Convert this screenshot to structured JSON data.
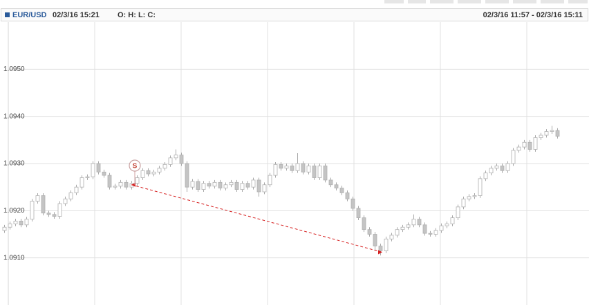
{
  "chart_data": {
    "type": "candlestick",
    "symbol": "EUR/USD",
    "timestamp": "02/3/16 15:21",
    "ohlc_label": "O: H: L: C:",
    "range": "02/3/16 11:57 - 02/3/16 15:11",
    "up_color": "#ffffff",
    "down_color": "#c4c4c4",
    "ylim": [
      1.09,
      1.096
    ],
    "yticks": [
      {
        "value": 1.091,
        "label": "1.0910"
      },
      {
        "value": 1.092,
        "label": "1.0920"
      },
      {
        "value": 1.093,
        "label": "1.0930"
      },
      {
        "value": 1.094,
        "label": "1.0940"
      },
      {
        "value": 1.095,
        "label": "1.0950"
      }
    ],
    "grid": true,
    "open": [
      1.09158,
      1.09165,
      1.09172,
      1.09178,
      1.0917,
      1.09182,
      1.0922,
      1.09232,
      1.09195,
      1.09192,
      1.09188,
      1.09215,
      1.09225,
      1.09238,
      1.0925,
      1.0927,
      1.09272,
      1.093,
      1.09282,
      1.09275,
      1.0925,
      1.09252,
      1.0926,
      1.0925,
      1.09258,
      1.0927,
      1.09285,
      1.09278,
      1.09282,
      1.0929,
      1.09298,
      1.09312,
      1.09318,
      1.093,
      1.0925,
      1.09262,
      1.09245,
      1.09258,
      1.09252,
      1.0926,
      1.09248,
      1.09255,
      1.0926,
      1.09245,
      1.09258,
      1.0925,
      1.09265,
      1.0924,
      1.09255,
      1.09275,
      1.09298,
      1.0929,
      1.09295,
      1.09285,
      1.093,
      1.09282,
      1.09295,
      1.0927,
      1.09295,
      1.09265,
      1.09255,
      1.09248,
      1.09238,
      1.09225,
      1.09205,
      1.09185,
      1.0916,
      1.0915,
      1.09125,
      1.09115,
      1.0914,
      1.09148,
      1.0916,
      1.09165,
      1.0917,
      1.09182,
      1.0917,
      1.09152,
      1.0915,
      1.09158,
      1.09168,
      1.09172,
      1.09185,
      1.09208,
      1.09225,
      1.0923,
      1.09232,
      1.09268,
      1.0928,
      1.0929,
      1.09295,
      1.09285,
      1.093,
      1.09328,
      1.09335,
      1.09345,
      1.0933,
      1.09355,
      1.0936,
      1.09368,
      1.0937
    ],
    "high": [
      1.0917,
      1.09177,
      1.09183,
      1.09183,
      1.09187,
      1.09225,
      1.09237,
      1.09237,
      1.092,
      1.09197,
      1.0922,
      1.0923,
      1.09243,
      1.09255,
      1.09275,
      1.09277,
      1.09305,
      1.09305,
      1.09287,
      1.0928,
      1.09257,
      1.09265,
      1.09265,
      1.09263,
      1.09275,
      1.0929,
      1.0929,
      1.09287,
      1.09295,
      1.09303,
      1.09317,
      1.0933,
      1.09323,
      1.09305,
      1.09267,
      1.09267,
      1.09263,
      1.09263,
      1.09265,
      1.09265,
      1.0926,
      1.09265,
      1.09265,
      1.09263,
      1.09263,
      1.0927,
      1.0927,
      1.0926,
      1.0928,
      1.09303,
      1.09303,
      1.093,
      1.093,
      1.09322,
      1.09305,
      1.093,
      1.093,
      1.093,
      1.093,
      1.0927,
      1.0926,
      1.09253,
      1.09243,
      1.0923,
      1.0921,
      1.0919,
      1.09165,
      1.09155,
      1.0913,
      1.09145,
      1.09153,
      1.09165,
      1.0917,
      1.09175,
      1.09192,
      1.09187,
      1.09175,
      1.09157,
      1.09163,
      1.09173,
      1.09177,
      1.0919,
      1.09213,
      1.0923,
      1.09235,
      1.09237,
      1.09273,
      1.09285,
      1.09295,
      1.093,
      1.093,
      1.09305,
      1.09333,
      1.0934,
      1.0935,
      1.0935,
      1.0936,
      1.09365,
      1.09373,
      1.0938,
      1.09375
    ],
    "low": [
      1.09153,
      1.0916,
      1.09167,
      1.09165,
      1.09165,
      1.09177,
      1.09215,
      1.0919,
      1.09187,
      1.09183,
      1.09183,
      1.0921,
      1.0922,
      1.09233,
      1.09245,
      1.09265,
      1.09267,
      1.09277,
      1.0927,
      1.09245,
      1.09245,
      1.09247,
      1.09245,
      1.09245,
      1.09253,
      1.09265,
      1.09273,
      1.09273,
      1.09277,
      1.09285,
      1.09293,
      1.09307,
      1.09295,
      1.0924,
      1.09245,
      1.0924,
      1.0924,
      1.09247,
      1.09247,
      1.09243,
      1.09243,
      1.0925,
      1.0924,
      1.0924,
      1.09245,
      1.09245,
      1.0923,
      1.09235,
      1.0925,
      1.0927,
      1.09285,
      1.09285,
      1.0928,
      1.0928,
      1.09277,
      1.09277,
      1.09265,
      1.09265,
      1.0926,
      1.0925,
      1.09243,
      1.09233,
      1.0922,
      1.092,
      1.0918,
      1.09155,
      1.09145,
      1.09115,
      1.09105,
      1.0911,
      1.09135,
      1.09143,
      1.09155,
      1.0916,
      1.09165,
      1.09165,
      1.09147,
      1.09145,
      1.09145,
      1.09153,
      1.09163,
      1.09167,
      1.0918,
      1.09203,
      1.0922,
      1.09225,
      1.09227,
      1.09263,
      1.09275,
      1.09285,
      1.0928,
      1.0928,
      1.09295,
      1.09323,
      1.0933,
      1.09325,
      1.09325,
      1.0935,
      1.09355,
      1.09363,
      1.09353
    ],
    "close": [
      1.09165,
      1.09172,
      1.09178,
      1.0917,
      1.09182,
      1.0922,
      1.09232,
      1.09195,
      1.09192,
      1.09188,
      1.09215,
      1.09225,
      1.09238,
      1.0925,
      1.0927,
      1.09272,
      1.093,
      1.09282,
      1.09275,
      1.0925,
      1.09252,
      1.0926,
      1.0925,
      1.09258,
      1.0927,
      1.09285,
      1.09278,
      1.09282,
      1.0929,
      1.09298,
      1.09312,
      1.09318,
      1.093,
      1.0925,
      1.09262,
      1.09245,
      1.09258,
      1.09252,
      1.0926,
      1.09248,
      1.09255,
      1.0926,
      1.09245,
      1.09258,
      1.0925,
      1.09265,
      1.0924,
      1.09255,
      1.09275,
      1.09298,
      1.0929,
      1.09295,
      1.09285,
      1.093,
      1.09282,
      1.09295,
      1.0927,
      1.09295,
      1.09265,
      1.09255,
      1.09248,
      1.09238,
      1.09225,
      1.09205,
      1.09185,
      1.0916,
      1.0915,
      1.09125,
      1.09115,
      1.0914,
      1.09148,
      1.0916,
      1.09165,
      1.0917,
      1.09182,
      1.0917,
      1.09152,
      1.0915,
      1.09158,
      1.09168,
      1.09172,
      1.09185,
      1.09208,
      1.09225,
      1.0923,
      1.09232,
      1.09268,
      1.0928,
      1.0929,
      1.09295,
      1.09285,
      1.093,
      1.09328,
      1.09335,
      1.09345,
      1.0933,
      1.09355,
      1.0936,
      1.09368,
      1.0937,
      1.09358
    ],
    "marker": {
      "label": "S",
      "color": "#c0392b"
    },
    "trendline": {
      "start": 1.09255,
      "end": 1.09112,
      "color": "#d62020"
    }
  }
}
